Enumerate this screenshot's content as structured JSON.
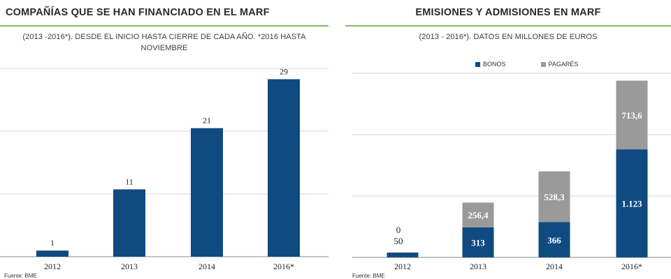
{
  "left": {
    "title": "COMPAÑÍAS QUE SE HAN FINANCIADO EN EL MARF",
    "subtitle": "(2013 -2016*). DESDE EL INICIO HASTA CIERRE DE CADA AÑO. *2016 HASTA NOVIEMBRE",
    "source": "Fuente: BME"
  },
  "right": {
    "title": "EMISIONES Y ADMISIONES EN MARF",
    "subtitle": "(2013 - 2016*). DATOS EN MILLONES DE EUROS",
    "source": "Fuente: BME"
  },
  "colors": {
    "bonos": "#0f4a80",
    "pagares": "#9a9a9a",
    "accent": "#7fbf64",
    "grid": "#d9d9d9"
  },
  "chart_data": [
    {
      "type": "bar",
      "title": "COMPAÑÍAS QUE SE HAN FINANCIADO EN EL MARF",
      "categories": [
        "2012",
        "2013",
        "2014",
        "2016*"
      ],
      "values": [
        1,
        11,
        21,
        29
      ],
      "value_labels": [
        "1",
        "11",
        "21",
        "29"
      ],
      "ylim": [
        0,
        31
      ],
      "grid": true
    },
    {
      "type": "bar",
      "stacked": true,
      "title": "EMISIONES Y ADMISIONES EN MARF",
      "categories": [
        "2012",
        "2013",
        "2014",
        "2016*"
      ],
      "ylim": [
        0,
        1950
      ],
      "grid": true,
      "legend_position": "top",
      "series": [
        {
          "name": "BONOS",
          "values": [
            50,
            313,
            366,
            1123
          ],
          "labels": [
            "50",
            "313",
            "366",
            "1.123"
          ]
        },
        {
          "name": "PAGARÉS",
          "values": [
            0,
            256.4,
            528.3,
            713.6
          ],
          "labels": [
            "0",
            "256,4",
            "528,3",
            "713,6"
          ]
        }
      ]
    }
  ]
}
